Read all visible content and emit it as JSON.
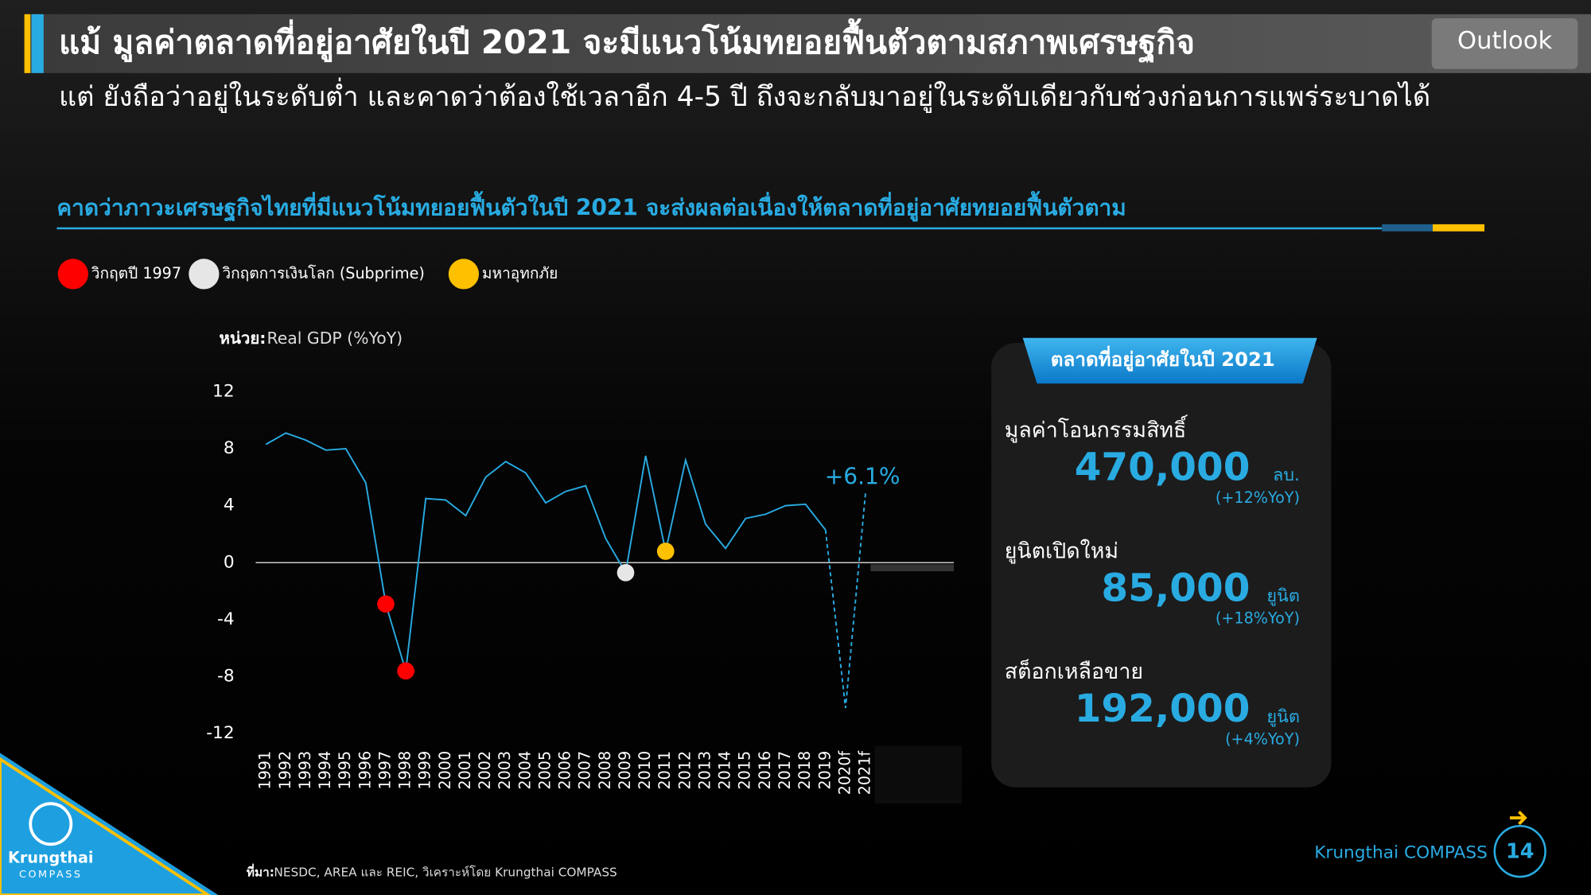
{
  "slide": {
    "title": "แม้ มูลค่าตลาดที่อยู่อาศัยในปี 2021 จะมีแนวโน้มทยอยฟื้นตัวตามสภาพเศรษฐกิจ",
    "tag": "Outlook",
    "subtitle": "แต่ ยังถือว่าอยู่ในระดับต่ำ และคาดว่าต้องใช้เวลาอีก 4-5 ปี ถึงจะกลับมาอยู่ในระดับเดียวกับช่วงก่อนการแพร่ระบาดได้",
    "section_heading": "คาดว่าภาวะเศรษฐกิจไทยที่มีแนวโน้มทยอยฟื้นตัวในปี 2021 จะส่งผลต่อเนื่องให้ตลาดที่อยู่อาศัยทยอยฟื้นตัวตาม",
    "source_prefix": "ที่มา:",
    "source": "NESDC, AREA และ REIC, วิเคราะห์โดย Krungthai COMPASS",
    "footer_brand": "Krungthai COMPASS",
    "page_number": "14",
    "logo_name": "Krungthai",
    "logo_sub": "COMPASS"
  },
  "panel": {
    "title": "ตลาดที่อยู่อาศัยในปี 2021",
    "items": [
      {
        "label": "มูลค่าโอนกรรมสิทธิ์",
        "value": "470,000",
        "unit": "ลบ.",
        "change": "(+12%YoY)"
      },
      {
        "label": "ยูนิตเปิดใหม่",
        "value": "85,000",
        "unit": "ยูนิต",
        "change": "(+18%YoY)"
      },
      {
        "label": "สต็อกเหลือขาย",
        "value": "192,000",
        "unit": "ยูนิต",
        "change": "(+4%YoY)"
      }
    ]
  },
  "chart_data": {
    "type": "line",
    "y_label_prefix": "หน่วย:",
    "y_label": "Real GDP (%YoY)",
    "annotation": "+6.1%",
    "categories": [
      "1991",
      "1992",
      "1993",
      "1994",
      "1995",
      "1996",
      "1997",
      "1998",
      "1999",
      "2000",
      "2001",
      "2002",
      "2003",
      "2004",
      "2005",
      "2006",
      "2007",
      "2008",
      "2009",
      "2010",
      "2011",
      "2012",
      "2013",
      "2014",
      "2015",
      "2016",
      "2017",
      "2018",
      "2019",
      "2020f",
      "2021f"
    ],
    "series": [
      {
        "color": "#29abe2",
        "dashed": false,
        "values": [
          8.3,
          9.1,
          8.6,
          7.9,
          8.0,
          5.6,
          -2.9,
          -7.6,
          4.5,
          4.4,
          3.3,
          6.0,
          7.1,
          6.3,
          4.2,
          5.0,
          5.4,
          1.7,
          -0.7,
          7.5,
          0.8,
          7.2,
          2.7,
          1.0,
          3.1,
          3.4,
          4.0,
          4.1,
          2.3,
          null,
          null
        ]
      },
      {
        "color": "#29abe2",
        "dashed": true,
        "values": [
          null,
          null,
          null,
          null,
          null,
          null,
          null,
          null,
          null,
          null,
          null,
          null,
          null,
          null,
          null,
          null,
          null,
          null,
          null,
          null,
          null,
          null,
          null,
          null,
          null,
          null,
          null,
          null,
          2.3,
          -10.2,
          4.9
        ]
      }
    ],
    "markers": [
      {
        "name": "วิกฤตปี 1997",
        "color": "#ff0000",
        "categories": [
          "1997",
          "1998"
        ]
      },
      {
        "name": "วิกฤตการเงินโลก (Subprime)",
        "color": "#e6e6e6",
        "categories": [
          "2009"
        ]
      },
      {
        "name": "มหาอุทกภัย",
        "color": "#ffc000",
        "categories": [
          "2011"
        ]
      }
    ],
    "ylim": [
      -12,
      12
    ],
    "yticks": [
      -12,
      -8,
      -4,
      0,
      4,
      8,
      12
    ],
    "grid": false
  }
}
